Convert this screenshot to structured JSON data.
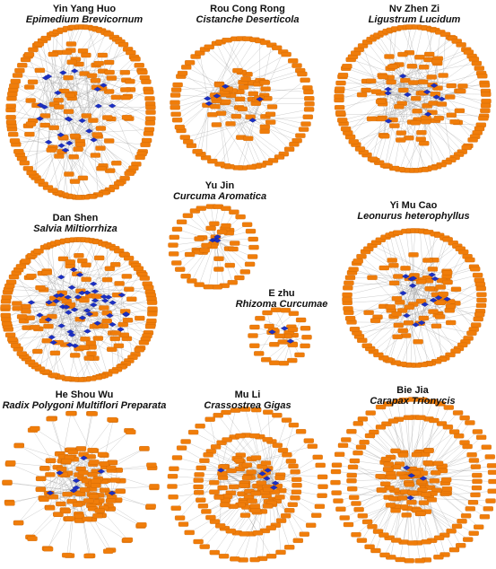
{
  "colors": {
    "node": "#f07d0a",
    "node_stroke": "#c55f00",
    "hub": "#1b2fc4",
    "edge": "#9a9a9a"
  },
  "panels": [
    {
      "id": "yin-yang-huo",
      "name": "Yin Yang Huo",
      "latin": "Epimedium Brevicornum",
      "targets": 185,
      "compounds": 22
    },
    {
      "id": "rou-cong-rong",
      "name": "Rou Cong Rong",
      "latin": "Cistanche Deserticola",
      "targets": 120,
      "compounds": 6
    },
    {
      "id": "nv-zhen-zi",
      "name": "Nv Zhen Zi",
      "latin": "Ligustrum Lucidum",
      "targets": 170,
      "compounds": 10
    },
    {
      "id": "yu-jin",
      "name": "Yu Jin",
      "latin": "Curcuma Aromatica",
      "targets": 55,
      "compounds": 4
    },
    {
      "id": "dan-shen",
      "name": "Dan Shen",
      "latin": "Salvia Miltiorrhiza",
      "targets": 190,
      "compounds": 45
    },
    {
      "id": "e-zhu",
      "name": "E zhu",
      "latin": "Rhizoma Curcumae",
      "targets": 32,
      "compounds": 3
    },
    {
      "id": "yi-mu-cao",
      "name": "Yi Mu Cao",
      "latin": "Leonurus heterophyllus",
      "targets": 150,
      "compounds": 14
    },
    {
      "id": "he-shou-wu",
      "name": "He Shou Wu",
      "latin": "Radix Polygoni Multiflori Preparata",
      "targets": 160,
      "compounds": 8
    },
    {
      "id": "mu-li",
      "name": "Mu Li",
      "latin": "Crassostrea Gigas",
      "targets": 170,
      "compounds": 6
    },
    {
      "id": "bie-jia",
      "name": "Bie Jia",
      "latin": "Carapax Trionycis",
      "targets": 200,
      "compounds": 4
    }
  ]
}
